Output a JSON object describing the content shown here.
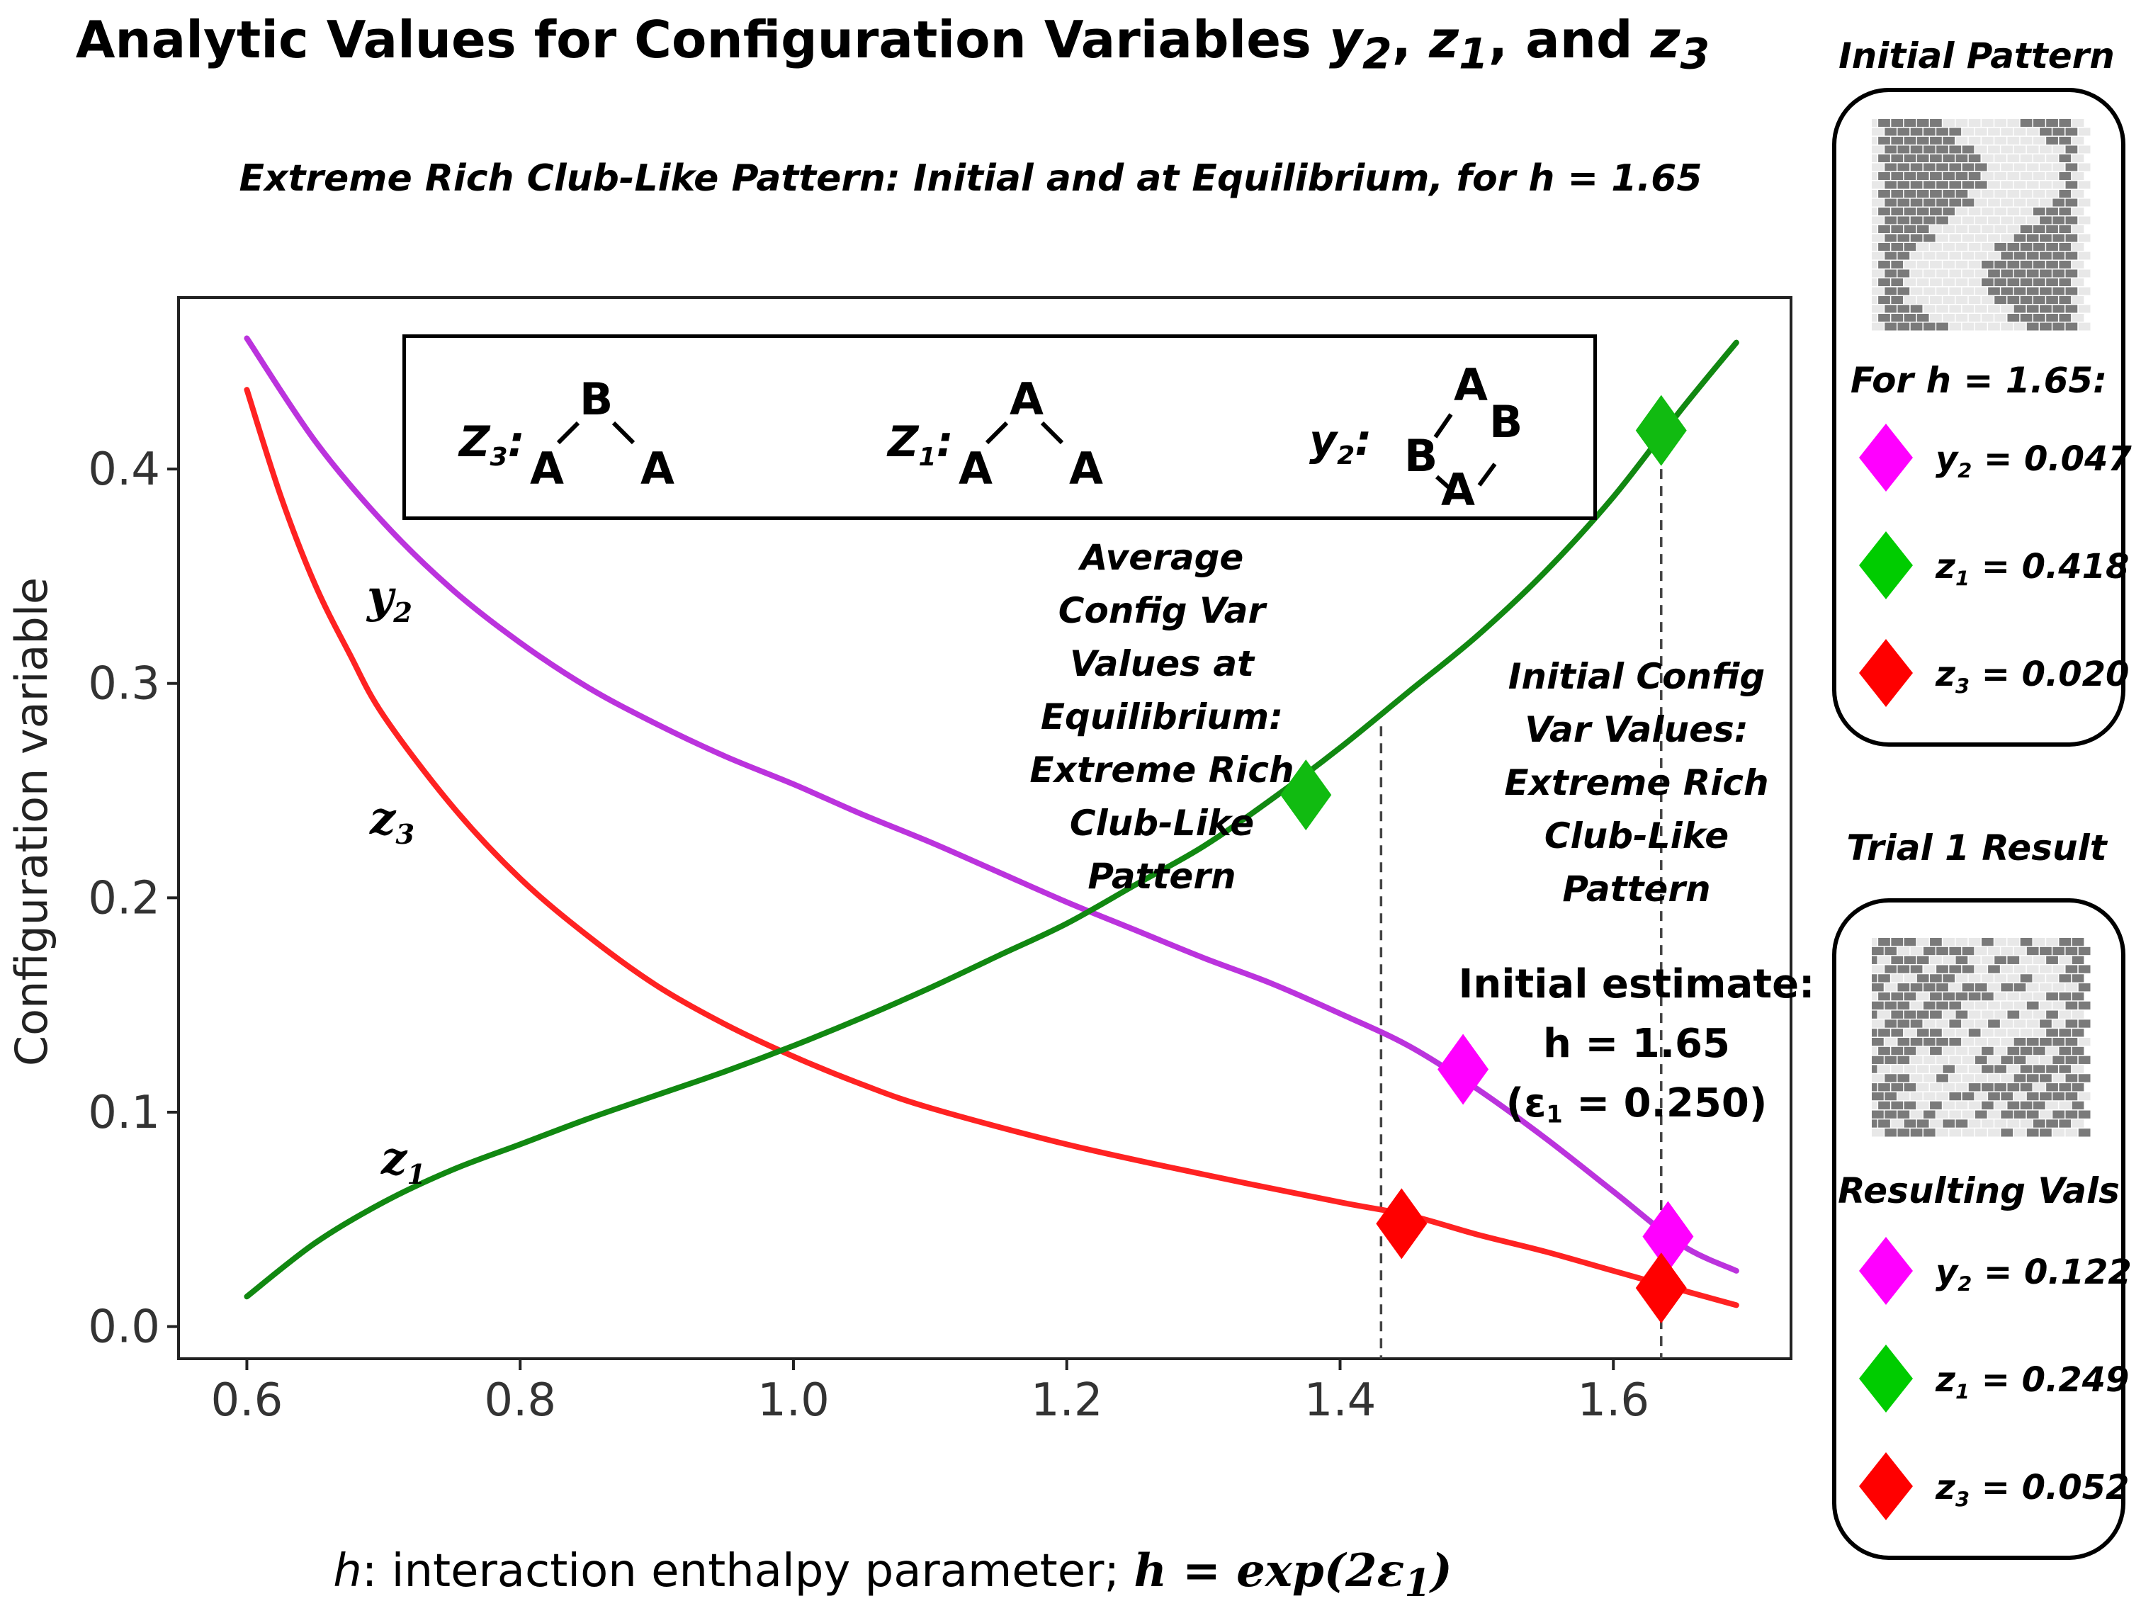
{
  "header": {
    "title_prefix": "Analytic Values for Configuration Variables ",
    "title_v1": "y",
    "title_v1_sub": "2",
    "title_sep1": ", ",
    "title_v2": "z",
    "title_v2_sub": "1",
    "title_sep2": ", and ",
    "title_v3": "z",
    "title_v3_sub": "3",
    "subtitle": "Extreme Rich Club-Like Pattern: Initial and at Equilibrium, for h = 1.65"
  },
  "axes": {
    "xlabel_var": "h",
    "xlabel_text": ": interaction enthalpy parameter; ",
    "xlabel_math_lhs": "h",
    "xlabel_math_rhs": " = exp(2ε",
    "xlabel_math_sub": "1",
    "xlabel_math_close": ")",
    "ylabel": "Configuration variable"
  },
  "motif_legend": {
    "z3": {
      "var": "Z",
      "sub": "3",
      "colon": ":",
      "top": "B",
      "left": "A",
      "right": "A"
    },
    "z1": {
      "var": "Z",
      "sub": "1",
      "colon": ":",
      "top": "A",
      "left": "A",
      "right": "A"
    },
    "y2": {
      "var": "y",
      "sub": "2",
      "colon": ":",
      "top": "A",
      "right": "B",
      "left": "B",
      "bottom": "A"
    }
  },
  "curve_labels": {
    "y2": {
      "var": "y",
      "sub": "2"
    },
    "z3": {
      "var": "z",
      "sub": "3"
    },
    "z1": {
      "var": "z",
      "sub": "1"
    }
  },
  "annotations": {
    "equilibrium": "Average\nConfig Var\nValues at\nEquilibrium:\nExtreme   Rich\nClub-Like\nPattern",
    "initial": "Initial Config\nVar Values:\nExtreme   Rich\nClub-Like\nPattern",
    "estimate_line1": "Initial estimate:",
    "estimate_line2": "h = 1.65",
    "estimate_line3_pre": "(ε",
    "estimate_line3_sub": "1",
    "estimate_line3_post": " = 0.250)"
  },
  "side_panel": {
    "initial_title": "Initial Pattern",
    "initial_head": "For h = 1.65:",
    "initial_rows": [
      {
        "var": "y",
        "sub": "2",
        "text": " = 0.047",
        "color": "#ff00ff"
      },
      {
        "var": "z",
        "sub": "1",
        "text": " = 0.418",
        "color": "#00cc00"
      },
      {
        "var": "z",
        "sub": "3",
        "text": " = 0.020",
        "color": "#ff0000"
      }
    ],
    "trial_title": "Trial  1  Result",
    "trial_head": "Resulting Vals",
    "trial_rows": [
      {
        "var": "y",
        "sub": "2",
        "text": " = 0.122",
        "color": "#ff00ff"
      },
      {
        "var": "z",
        "sub": "1",
        "text": " = 0.249",
        "color": "#00cc00"
      },
      {
        "var": "z",
        "sub": "3",
        "text": " = 0.052",
        "color": "#ff0000"
      }
    ]
  },
  "chart_data": {
    "type": "line",
    "xlim": [
      0.55,
      1.73
    ],
    "ylim": [
      -0.015,
      0.48
    ],
    "x_ticks": [
      0.6,
      0.8,
      1.0,
      1.2,
      1.4,
      1.6
    ],
    "x_tick_labels": [
      "0.6",
      "0.8",
      "1.0",
      "1.2",
      "1.4",
      "1.6"
    ],
    "y_ticks": [
      0.0,
      0.1,
      0.2,
      0.3,
      0.4
    ],
    "y_tick_labels": [
      "0.0",
      "0.1",
      "0.2",
      "0.3",
      "0.4"
    ],
    "grid": false,
    "series": [
      {
        "id": "y2",
        "color": "#bb33dd",
        "x": [
          0.6,
          0.65,
          0.7,
          0.75,
          0.8,
          0.85,
          0.9,
          0.95,
          1.0,
          1.05,
          1.1,
          1.15,
          1.2,
          1.25,
          1.3,
          1.35,
          1.4,
          1.45,
          1.5,
          1.55,
          1.6,
          1.65,
          1.69
        ],
        "y": [
          0.461,
          0.413,
          0.375,
          0.344,
          0.319,
          0.298,
          0.281,
          0.266,
          0.253,
          0.239,
          0.226,
          0.212,
          0.198,
          0.185,
          0.172,
          0.16,
          0.146,
          0.131,
          0.111,
          0.088,
          0.063,
          0.038,
          0.026
        ]
      },
      {
        "id": "z3",
        "color": "#ff2222",
        "x": [
          0.6,
          0.625,
          0.65,
          0.675,
          0.7,
          0.75,
          0.8,
          0.85,
          0.9,
          0.95,
          1.0,
          1.05,
          1.1,
          1.2,
          1.3,
          1.4,
          1.45,
          1.5,
          1.55,
          1.6,
          1.65,
          1.69
        ],
        "y": [
          0.437,
          0.387,
          0.346,
          0.314,
          0.285,
          0.243,
          0.209,
          0.182,
          0.159,
          0.141,
          0.126,
          0.113,
          0.102,
          0.085,
          0.071,
          0.058,
          0.052,
          0.043,
          0.035,
          0.026,
          0.017,
          0.01
        ]
      },
      {
        "id": "z1",
        "color": "#118811",
        "x": [
          0.6,
          0.65,
          0.7,
          0.75,
          0.8,
          0.85,
          0.9,
          0.95,
          1.0,
          1.05,
          1.1,
          1.15,
          1.2,
          1.25,
          1.3,
          1.35,
          1.4,
          1.45,
          1.5,
          1.55,
          1.6,
          1.65,
          1.69
        ],
        "y": [
          0.014,
          0.039,
          0.058,
          0.073,
          0.085,
          0.097,
          0.108,
          0.119,
          0.131,
          0.144,
          0.158,
          0.173,
          0.188,
          0.206,
          0.224,
          0.246,
          0.27,
          0.296,
          0.322,
          0.352,
          0.387,
          0.428,
          0.459
        ]
      }
    ],
    "markers": [
      {
        "series": "z1",
        "x": 1.635,
        "y": 0.418,
        "color": "#11bb11"
      },
      {
        "series": "z1",
        "x": 1.375,
        "y": 0.248,
        "color": "#11bb11"
      },
      {
        "series": "y2",
        "x": 1.49,
        "y": 0.12,
        "color": "#ff00ff"
      },
      {
        "series": "y2",
        "x": 1.64,
        "y": 0.042,
        "color": "#ff00ff"
      },
      {
        "series": "z3",
        "x": 1.445,
        "y": 0.048,
        "color": "#ff0000"
      },
      {
        "series": "z3",
        "x": 1.635,
        "y": 0.018,
        "color": "#ff0000"
      }
    ],
    "dashed_vlines": [
      {
        "x": 1.43,
        "y_top": 0.28
      },
      {
        "x": 1.635,
        "y_top": 0.4
      }
    ]
  }
}
